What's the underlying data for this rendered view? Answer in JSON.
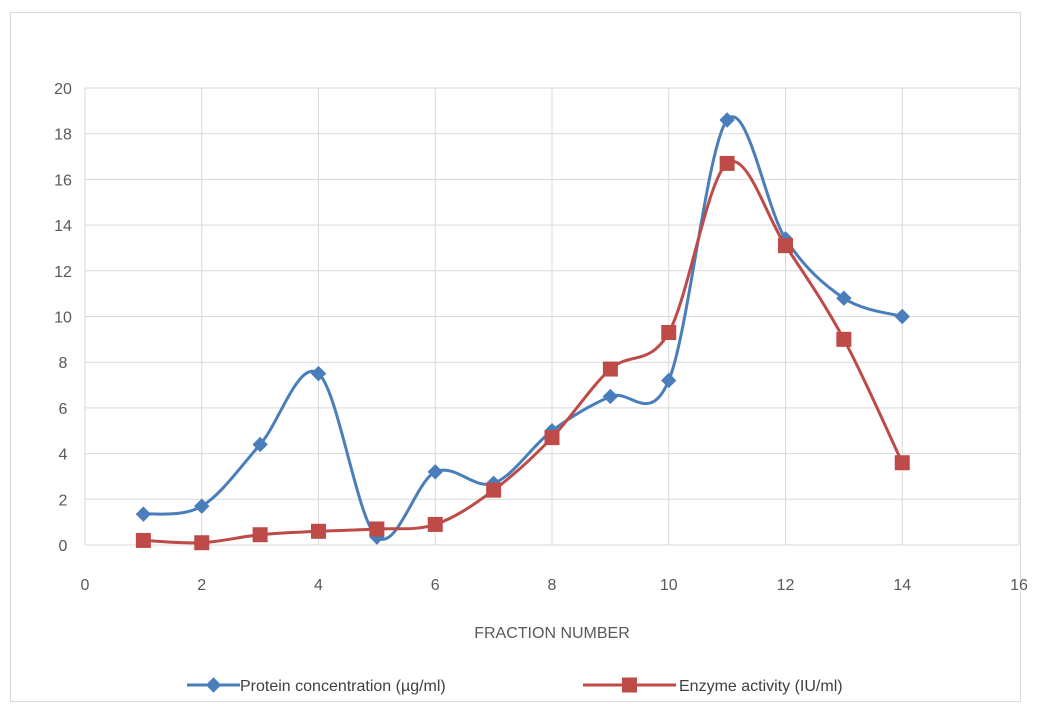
{
  "chart_data": {
    "type": "line",
    "title": "",
    "xlabel": "FRACTION NUMBER",
    "ylabel": "",
    "xlim": [
      0,
      16
    ],
    "ylim": [
      0,
      20
    ],
    "x_ticks": [
      "0",
      "2",
      "4",
      "6",
      "8",
      "10",
      "12",
      "14",
      "16"
    ],
    "y_ticks": [
      "0",
      "2",
      "4",
      "6",
      "8",
      "10",
      "12",
      "14",
      "16",
      "18",
      "20"
    ],
    "grid": true,
    "smooth": true,
    "legend_position": "bottom",
    "series": [
      {
        "name": "Protein concentration (µg/ml)",
        "color": "#4a7ebb",
        "marker": "diamond",
        "x": [
          1,
          2,
          3,
          4,
          5,
          6,
          7,
          8,
          9,
          10,
          11,
          12,
          13,
          14
        ],
        "y": [
          1.35,
          1.7,
          4.4,
          7.5,
          0.35,
          3.2,
          2.7,
          5.0,
          6.5,
          7.2,
          18.6,
          13.4,
          10.8,
          10.0
        ]
      },
      {
        "name": "Enzyme activity (IU/ml)",
        "color": "#be4b48",
        "marker": "square",
        "x": [
          1,
          2,
          3,
          4,
          5,
          6,
          7,
          8,
          9,
          10,
          11,
          12,
          13,
          14
        ],
        "y": [
          0.2,
          0.1,
          0.45,
          0.6,
          0.7,
          0.9,
          2.4,
          4.7,
          7.7,
          9.3,
          16.7,
          13.1,
          9.0,
          3.6
        ]
      }
    ]
  }
}
